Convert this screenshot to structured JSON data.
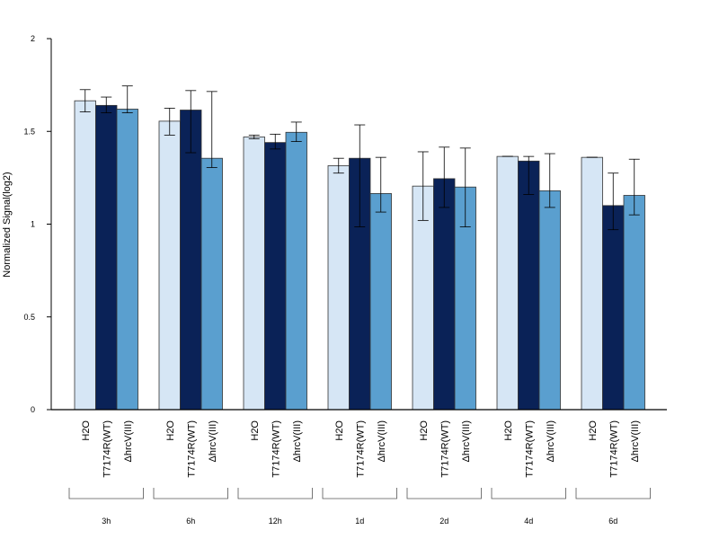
{
  "chart_data": {
    "type": "bar",
    "title": "",
    "xlabel": "",
    "ylabel": "Normalized Signal(log2)",
    "ylim": [
      0,
      2
    ],
    "yticks": [
      0,
      0.5,
      1,
      1.5,
      2
    ],
    "ytick_labels": [
      "0",
      "0.5",
      "1",
      "1.5",
      "2"
    ],
    "grid": false,
    "legend": "none",
    "categories": [
      "3h",
      "6h",
      "12h",
      "1d",
      "2d",
      "4d",
      "6d"
    ],
    "bar_labels": [
      "H2O",
      "T7174R(WT)",
      "ΔhrcV(III)"
    ],
    "series": [
      {
        "color": "#d6e6f5",
        "values": [
          1.665,
          1.555,
          1.47,
          1.315,
          1.205,
          1.365,
          1.36
        ],
        "error_low": [
          1.605,
          1.48,
          1.46,
          1.275,
          1.02,
          1.365,
          1.36
        ],
        "error_high": [
          1.725,
          1.625,
          1.48,
          1.355,
          1.39,
          1.365,
          1.36
        ]
      },
      {
        "color": "#0a2257",
        "values": [
          1.64,
          1.615,
          1.44,
          1.355,
          1.245,
          1.34,
          1.1
        ],
        "error_low": [
          1.6,
          1.385,
          1.405,
          0.985,
          1.09,
          1.16,
          0.97
        ],
        "error_high": [
          1.685,
          1.72,
          1.485,
          1.535,
          1.415,
          1.365,
          1.275
        ]
      },
      {
        "color": "#5a9fcf",
        "values": [
          1.62,
          1.355,
          1.495,
          1.165,
          1.2,
          1.18,
          1.155
        ],
        "error_low": [
          1.6,
          1.305,
          1.445,
          1.065,
          0.985,
          1.09,
          1.05
        ],
        "error_high": [
          1.745,
          1.715,
          1.55,
          1.36,
          1.41,
          1.38,
          1.35
        ]
      }
    ]
  }
}
